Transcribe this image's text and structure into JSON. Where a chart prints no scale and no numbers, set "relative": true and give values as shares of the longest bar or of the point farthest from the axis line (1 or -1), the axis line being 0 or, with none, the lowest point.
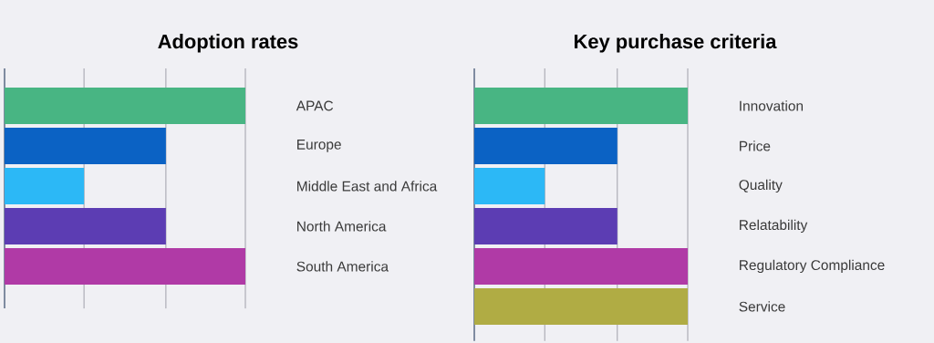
{
  "chart_data": [
    {
      "type": "bar",
      "title": "Adoption rates",
      "orientation": "horizontal",
      "relative": true,
      "ref_lines": [
        {
          "axis": "x",
          "value": 0.33,
          "color": "#8c8c98"
        },
        {
          "axis": "x",
          "value": 0.67,
          "color": "#8c8c98"
        },
        {
          "axis": "x",
          "value": 1,
          "color": "#8c8c98"
        }
      ],
      "categories": [
        "APAC",
        "Europe",
        "Middle East and Africa",
        "North America",
        "South America"
      ],
      "values": [
        1,
        0.67,
        0.33,
        0.67,
        1
      ],
      "colors": [
        "#48b583",
        "#0b62c4",
        "#2cb8f6",
        "#5c3db3",
        "#b03aa6"
      ]
    },
    {
      "type": "bar",
      "title": "Key purchase criteria",
      "orientation": "horizontal",
      "relative": true,
      "ref_lines": [
        {
          "axis": "x",
          "value": 0.33,
          "color": "#8c8c98"
        },
        {
          "axis": "x",
          "value": 0.67,
          "color": "#8c8c98"
        },
        {
          "axis": "x",
          "value": 1,
          "color": "#8c8c98"
        }
      ],
      "categories": [
        "Innovation",
        "Price",
        "Quality",
        "Relatability",
        "Regulatory Compliance",
        "Service"
      ],
      "values": [
        1,
        0.67,
        0.33,
        0.67,
        1,
        1
      ],
      "colors": [
        "#48b583",
        "#0b62c4",
        "#2cb8f6",
        "#5c3db3",
        "#b03aa6",
        "#b0ac44"
      ]
    }
  ]
}
